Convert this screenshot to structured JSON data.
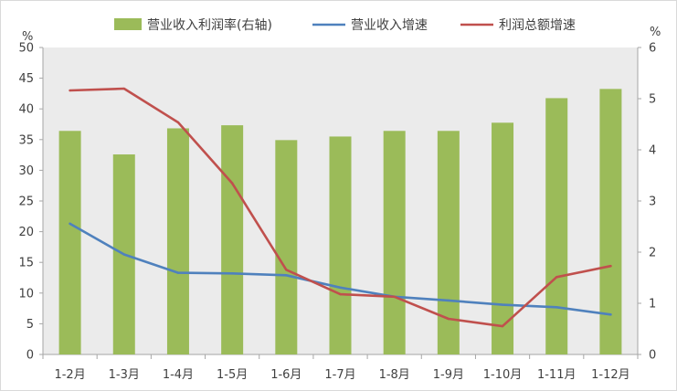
{
  "chart_data": {
    "type": "bar",
    "categories": [
      "1-2月",
      "1-3月",
      "1-4月",
      "1-5月",
      "1-6月",
      "1-7月",
      "1-8月",
      "1-9月",
      "1-10月",
      "1-11月",
      "1-12月"
    ],
    "series": [
      {
        "name": "营业收入利润率(右轴)",
        "type": "bar",
        "axis": "right",
        "color": "#9BBB59",
        "values": [
          4.37,
          3.91,
          4.42,
          4.48,
          4.19,
          4.26,
          4.37,
          4.37,
          4.53,
          5.01,
          5.19
        ]
      },
      {
        "name": "营业收入增速",
        "type": "line",
        "axis": "left",
        "color": "#4F81BD",
        "values": [
          21.3,
          16.3,
          13.3,
          13.2,
          12.9,
          10.9,
          9.4,
          8.8,
          8.1,
          7.7,
          6.5
        ]
      },
      {
        "name": "利润总额增速",
        "type": "line",
        "axis": "left",
        "color": "#C0504D",
        "values": [
          43.0,
          43.3,
          37.8,
          27.9,
          13.8,
          9.8,
          9.4,
          5.8,
          4.6,
          12.6,
          14.4
        ]
      }
    ],
    "left_axis": {
      "unit": "%",
      "ylim": [
        0,
        50
      ],
      "ticks": [
        "0",
        "5",
        "10",
        "15",
        "20",
        "25",
        "30",
        "35",
        "40",
        "45",
        "50"
      ]
    },
    "right_axis": {
      "unit": "%",
      "ylim": [
        0,
        6
      ],
      "ticks": [
        "0",
        "1",
        "2",
        "3",
        "4",
        "5",
        "6"
      ]
    },
    "grid": false,
    "legend_position": "top",
    "plot_background": "#EBEBEB"
  }
}
